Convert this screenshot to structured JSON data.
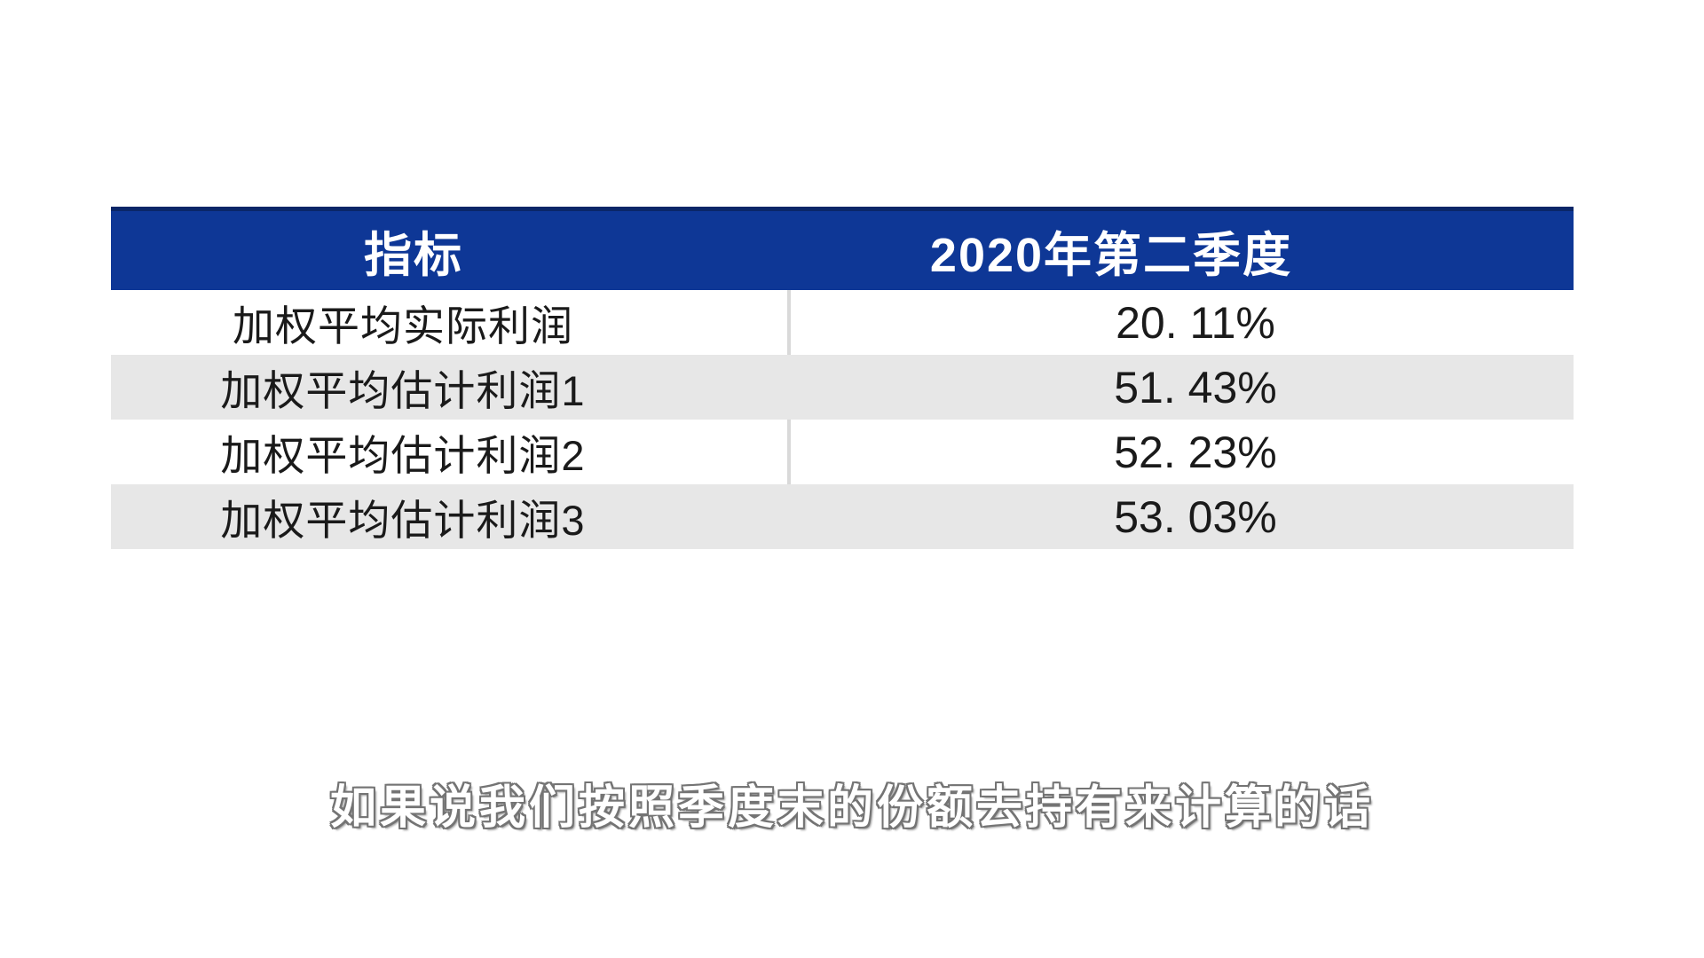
{
  "table": {
    "columns": [
      {
        "label": "指标"
      },
      {
        "label": "2020年第二季度"
      }
    ],
    "rows": [
      {
        "label": "加权平均实际利润",
        "value": "20. 11%"
      },
      {
        "label": "加权平均估计利润1",
        "value": "51. 43%"
      },
      {
        "label": "加权平均估计利润2",
        "value": "52. 23%"
      },
      {
        "label": "加权平均估计利润3",
        "value": "53. 03%"
      }
    ],
    "colors": {
      "header_bg": "#0E3796",
      "header_top_border": "#0A2668",
      "header_text": "#FFFFFF",
      "row_bg": "#FFFFFF",
      "row_alt_bg": "#E7E7E7",
      "divider": "#D9D9D9",
      "body_text": "#1A1A1A"
    }
  },
  "subtitle": {
    "text": "如果说我们按照季度末的份额去持有来计算的话",
    "text_color": "#FFFFFF",
    "outline_color": "#747474"
  }
}
